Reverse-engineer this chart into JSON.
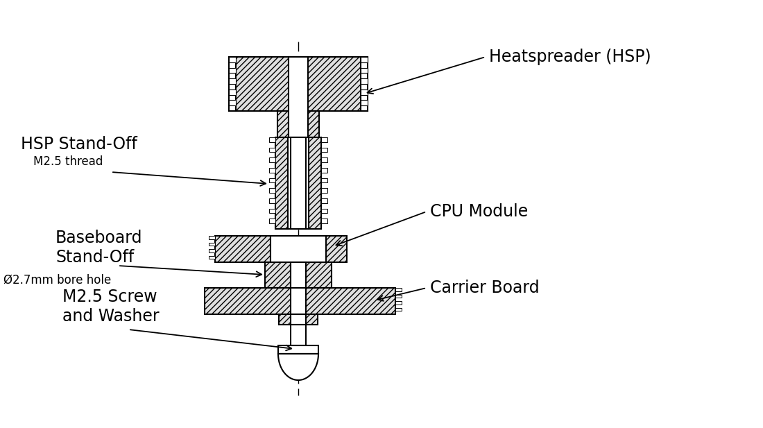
{
  "bg_color": "#ffffff",
  "line_color": "#000000",
  "labels": {
    "heatspreader": "Heatspreader (HSP)",
    "hsp_standoff_line1": "HSP Stand-Off",
    "hsp_standoff_line2": "M2.5 thread",
    "cpu_module": "CPU Module",
    "baseboard_line1": "Baseboard",
    "baseboard_line2": "Stand-Off",
    "baseboard_line3": "Ø2.7mm bore hole",
    "screw_line1": "M2.5 Screw",
    "screw_line2": "and Washer",
    "carrier_board": "Carrier Board"
  },
  "font_size_large": 17,
  "font_size_small": 12
}
